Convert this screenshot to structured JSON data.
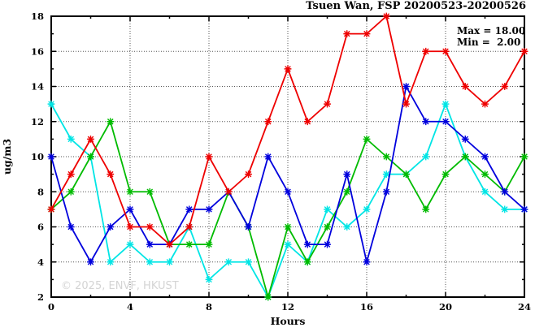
{
  "header": {
    "title": "Tsuen Wan, FSP 20200523-20200526"
  },
  "legend": {
    "max": "Max = 18.00",
    "min": "Min =  2.00"
  },
  "watermark": "© 2025, ENVF, HKUST",
  "axes": {
    "xlabel": "Hours",
    "ylabel": "ug/m3"
  },
  "chart_data": {
    "type": "line",
    "title": "Tsuen Wan, FSP 20200523-20200526",
    "xlabel": "Hours",
    "ylabel": "ug/m3",
    "xlim": [
      0,
      24
    ],
    "ylim": [
      2,
      18
    ],
    "x_major_ticks": [
      0,
      4,
      8,
      12,
      16,
      20,
      24
    ],
    "x_minor_ticks": [
      2,
      6,
      10,
      14,
      18,
      22
    ],
    "y_major_ticks": [
      2,
      4,
      6,
      8,
      10,
      12,
      14,
      16,
      18
    ],
    "y_minor_ticks": [
      3,
      5,
      7,
      9,
      11,
      13,
      15,
      17
    ],
    "grid": true,
    "legend_position": "top-right-inside",
    "annotations": {
      "max": "18.00",
      "min": "2.00"
    },
    "x": [
      0,
      1,
      2,
      3,
      4,
      5,
      6,
      7,
      8,
      9,
      10,
      11,
      12,
      13,
      14,
      15,
      16,
      17,
      18,
      19,
      20,
      21,
      22,
      23,
      24
    ],
    "series": [
      {
        "name": "cyan",
        "color": "#00e5e5",
        "values": [
          13,
          11,
          10,
          4,
          5,
          4,
          4,
          6,
          3,
          4,
          4,
          2,
          5,
          4,
          7,
          6,
          7,
          9,
          9,
          10,
          13,
          10,
          8,
          7,
          7
        ]
      },
      {
        "name": "green",
        "color": "#00bb00",
        "values": [
          7,
          8,
          10,
          12,
          8,
          8,
          5,
          5,
          5,
          8,
          6,
          2,
          6,
          4,
          6,
          8,
          11,
          10,
          9,
          7,
          9,
          10,
          9,
          8,
          10
        ]
      },
      {
        "name": "blue",
        "color": "#0000dd",
        "values": [
          10,
          6,
          4,
          6,
          7,
          5,
          5,
          7,
          7,
          8,
          6,
          10,
          8,
          5,
          5,
          9,
          4,
          8,
          14,
          12,
          12,
          11,
          10,
          8,
          7
        ]
      },
      {
        "name": "red",
        "color": "#ee0000",
        "values": [
          7,
          9,
          11,
          9,
          6,
          6,
          5,
          6,
          10,
          8,
          9,
          12,
          15,
          12,
          13,
          17,
          17,
          18,
          13,
          16,
          16,
          14,
          13,
          14,
          16
        ]
      }
    ]
  }
}
